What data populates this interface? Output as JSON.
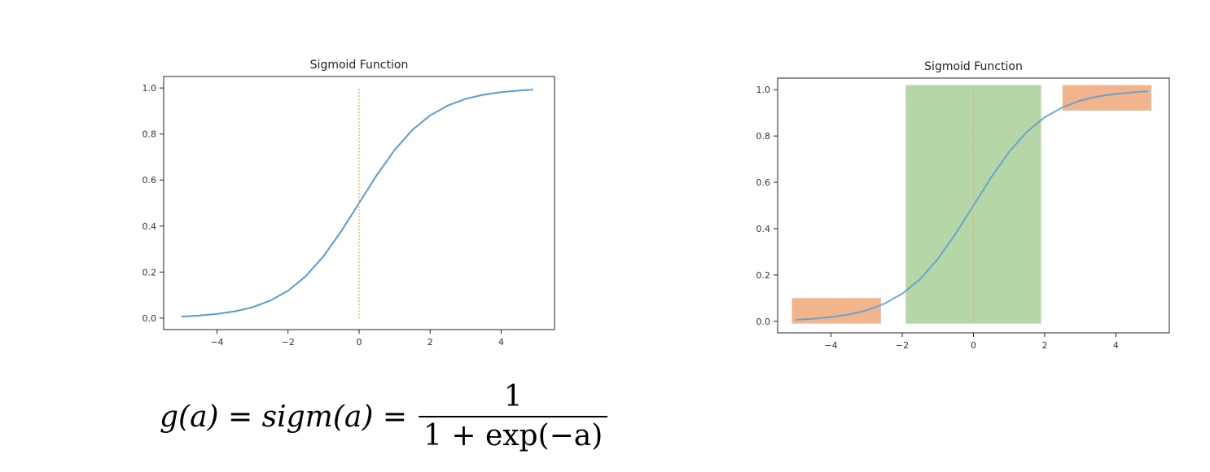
{
  "chart_data": [
    {
      "type": "line",
      "title": "Sigmoid Function",
      "xlabel": "",
      "ylabel": "",
      "xlim": [
        -5.5,
        5.5
      ],
      "ylim": [
        -0.05,
        1.05
      ],
      "xticks": [
        -4,
        -2,
        0,
        2,
        4
      ],
      "xtick_labels": [
        "−4",
        "−2",
        "0",
        "2",
        "4"
      ],
      "yticks": [
        0.0,
        0.2,
        0.4,
        0.6,
        0.8,
        1.0
      ],
      "ytick_labels": [
        "0.0",
        "0.2",
        "0.4",
        "0.6",
        "0.8",
        "1.0"
      ],
      "grid": false,
      "series": [
        {
          "kind": "curve",
          "color": "#5b9bd5",
          "x": [
            -5,
            -4.5,
            -4,
            -3.5,
            -3,
            -2.5,
            -2,
            -1.5,
            -1,
            -0.5,
            0,
            0.5,
            1,
            1.5,
            2,
            2.5,
            3,
            3.5,
            4,
            4.5,
            4.9
          ],
          "y": [
            0.0067,
            0.011,
            0.018,
            0.029,
            0.047,
            0.076,
            0.119,
            0.182,
            0.269,
            0.378,
            0.5,
            0.622,
            0.731,
            0.818,
            0.881,
            0.924,
            0.953,
            0.971,
            0.982,
            0.989,
            0.993
          ]
        },
        {
          "kind": "vertical-dotted",
          "color": "#f5a25d",
          "x": [
            0,
            0
          ],
          "y": [
            0.0,
            1.0
          ]
        }
      ]
    },
    {
      "type": "line",
      "title": "Sigmoid Function",
      "xlabel": "",
      "ylabel": "",
      "xlim": [
        -5.5,
        5.5
      ],
      "ylim": [
        -0.05,
        1.05
      ],
      "xticks": [
        -4,
        -2,
        0,
        2,
        4
      ],
      "xtick_labels": [
        "−4",
        "−2",
        "0",
        "2",
        "4"
      ],
      "yticks": [
        0.0,
        0.2,
        0.4,
        0.6,
        0.8,
        1.0
      ],
      "ytick_labels": [
        "0.0",
        "0.2",
        "0.4",
        "0.6",
        "0.8",
        "1.0"
      ],
      "grid": false,
      "regions": [
        {
          "color": "#f2b48c",
          "x": [
            -5.1,
            -2.6
          ],
          "y": [
            -0.01,
            0.1
          ]
        },
        {
          "color": "#b5d6a7",
          "x": [
            -1.9,
            1.9
          ],
          "y": [
            -0.01,
            1.02
          ]
        },
        {
          "color": "#f2b48c",
          "x": [
            2.5,
            5.0
          ],
          "y": [
            0.91,
            1.02
          ]
        }
      ],
      "series": [
        {
          "kind": "curve",
          "color": "#5b9bd5",
          "x": [
            -5,
            -4.5,
            -4,
            -3.5,
            -3,
            -2.5,
            -2,
            -1.5,
            -1,
            -0.5,
            0,
            0.5,
            1,
            1.5,
            2,
            2.5,
            3,
            3.5,
            4,
            4.5,
            4.9
          ],
          "y": [
            0.0067,
            0.011,
            0.018,
            0.029,
            0.047,
            0.076,
            0.119,
            0.182,
            0.269,
            0.378,
            0.5,
            0.622,
            0.731,
            0.818,
            0.881,
            0.924,
            0.953,
            0.971,
            0.982,
            0.989,
            0.993
          ]
        },
        {
          "kind": "vertical-dotted",
          "color": "#f5a25d",
          "x": [
            0,
            0
          ],
          "y": [
            0.0,
            1.0
          ]
        }
      ]
    }
  ],
  "formula": {
    "lhs": "g(a) = sigm(a) =",
    "numerator": "1",
    "denominator": "1 + exp(−a)"
  }
}
